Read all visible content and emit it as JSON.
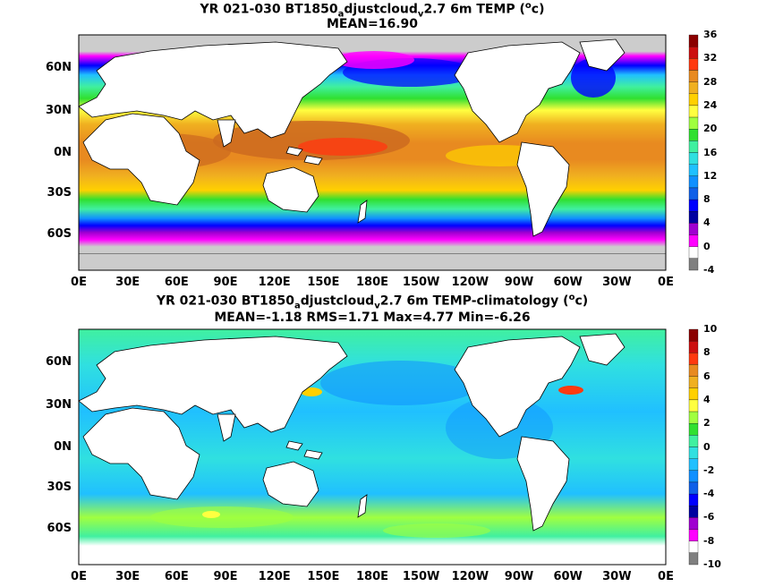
{
  "panels": [
    {
      "id": "top",
      "title_pre": "YR 021-030 BT1850",
      "title_sub1": "a",
      "title_mid": "djustcloud",
      "title_sub2": "v",
      "title_post": "2.7 6m TEMP (",
      "title_sup": "o",
      "title_end": "c)",
      "stats": "MEAN=16.90",
      "colorbar_ticks": [
        "36",
        "32",
        "28",
        "24",
        "20",
        "16",
        "12",
        "8",
        "4",
        "0",
        "-4"
      ],
      "colorbar_colors": [
        "#8b0000",
        "#cc1010",
        "#ff3a10",
        "#e88a20",
        "#f0b020",
        "#ffd000",
        "#ffff40",
        "#a0ff40",
        "#30e030",
        "#40f0a0",
        "#30e0e0",
        "#20c0ff",
        "#1090ff",
        "#1060e8",
        "#0000ff",
        "#0000a0",
        "#a000d0",
        "#ff00ff",
        "#ffffff",
        "#808080"
      ]
    },
    {
      "id": "bottom",
      "title_pre": "YR 021-030 BT1850",
      "title_sub1": "a",
      "title_mid": "djustcloud",
      "title_sub2": "v",
      "title_post": "2.7 6m TEMP-climatology (",
      "title_sup": "o",
      "title_end": "c)",
      "stats": "MEAN=-1.18   RMS=1.71   Max=4.77   Min=-6.26",
      "colorbar_ticks": [
        "10",
        "8",
        "6",
        "4",
        "2",
        "0",
        "-2",
        "-4",
        "-6",
        "-8",
        "-10"
      ],
      "colorbar_colors": [
        "#8b0000",
        "#cc1010",
        "#ff3a10",
        "#e88a20",
        "#f0b020",
        "#ffd000",
        "#ffff40",
        "#a0ff40",
        "#30e030",
        "#40f0a0",
        "#30e0e0",
        "#20c0ff",
        "#1090ff",
        "#1060e8",
        "#0000ff",
        "#0000a0",
        "#a000d0",
        "#ff00ff",
        "#ffffff",
        "#808080"
      ]
    }
  ],
  "lat_labels": [
    "60N",
    "30N",
    "0N",
    "30S",
    "60S"
  ],
  "lon_labels": [
    "0E",
    "30E",
    "60E",
    "90E",
    "120E",
    "150E",
    "180E",
    "150W",
    "120W",
    "90W",
    "60W",
    "30W",
    "0E"
  ],
  "colors": {
    "land": "#ffffff",
    "ice": "#cccccc",
    "frame": "#000000"
  }
}
